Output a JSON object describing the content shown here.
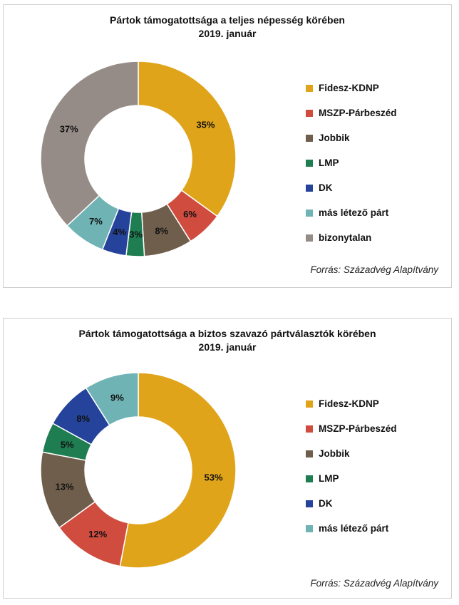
{
  "chart_data": [
    {
      "type": "pie",
      "title": "Pártok támogatottsága a teljes népesség körében",
      "subtitle": "2019. január",
      "source": "Forrás: Századvég Alapítvány",
      "categories": [
        "Fidesz-KDNP",
        "MSZP-Párbeszéd",
        "Jobbik",
        "LMP",
        "DK",
        "más létező párt",
        "bizonytalan"
      ],
      "values": [
        35,
        6,
        8,
        3,
        4,
        7,
        37
      ],
      "labels": [
        "35%",
        "6%",
        "8%",
        "3%",
        "4%",
        "7%",
        "37%"
      ],
      "colors": [
        "#e0a41a",
        "#cf4c3f",
        "#6f5e4b",
        "#1f7d52",
        "#25439a",
        "#6fb3b5",
        "#958c87"
      ],
      "legend": "right"
    },
    {
      "type": "pie",
      "title": "Pártok támogatottsága a biztos szavazó pártválasztók körében",
      "subtitle": "2019. január",
      "source": "Forrás: Századvég Alapítvány",
      "categories": [
        "Fidesz-KDNP",
        "MSZP-Párbeszéd",
        "Jobbik",
        "LMP",
        "DK",
        "más létező párt"
      ],
      "values": [
        53,
        12,
        13,
        5,
        8,
        9
      ],
      "labels": [
        "53%",
        "12%",
        "13%",
        "5%",
        "8%",
        "9%"
      ],
      "colors": [
        "#e0a41a",
        "#cf4c3f",
        "#6f5e4b",
        "#1f7d52",
        "#25439a",
        "#6fb3b5"
      ],
      "legend": "right"
    }
  ]
}
